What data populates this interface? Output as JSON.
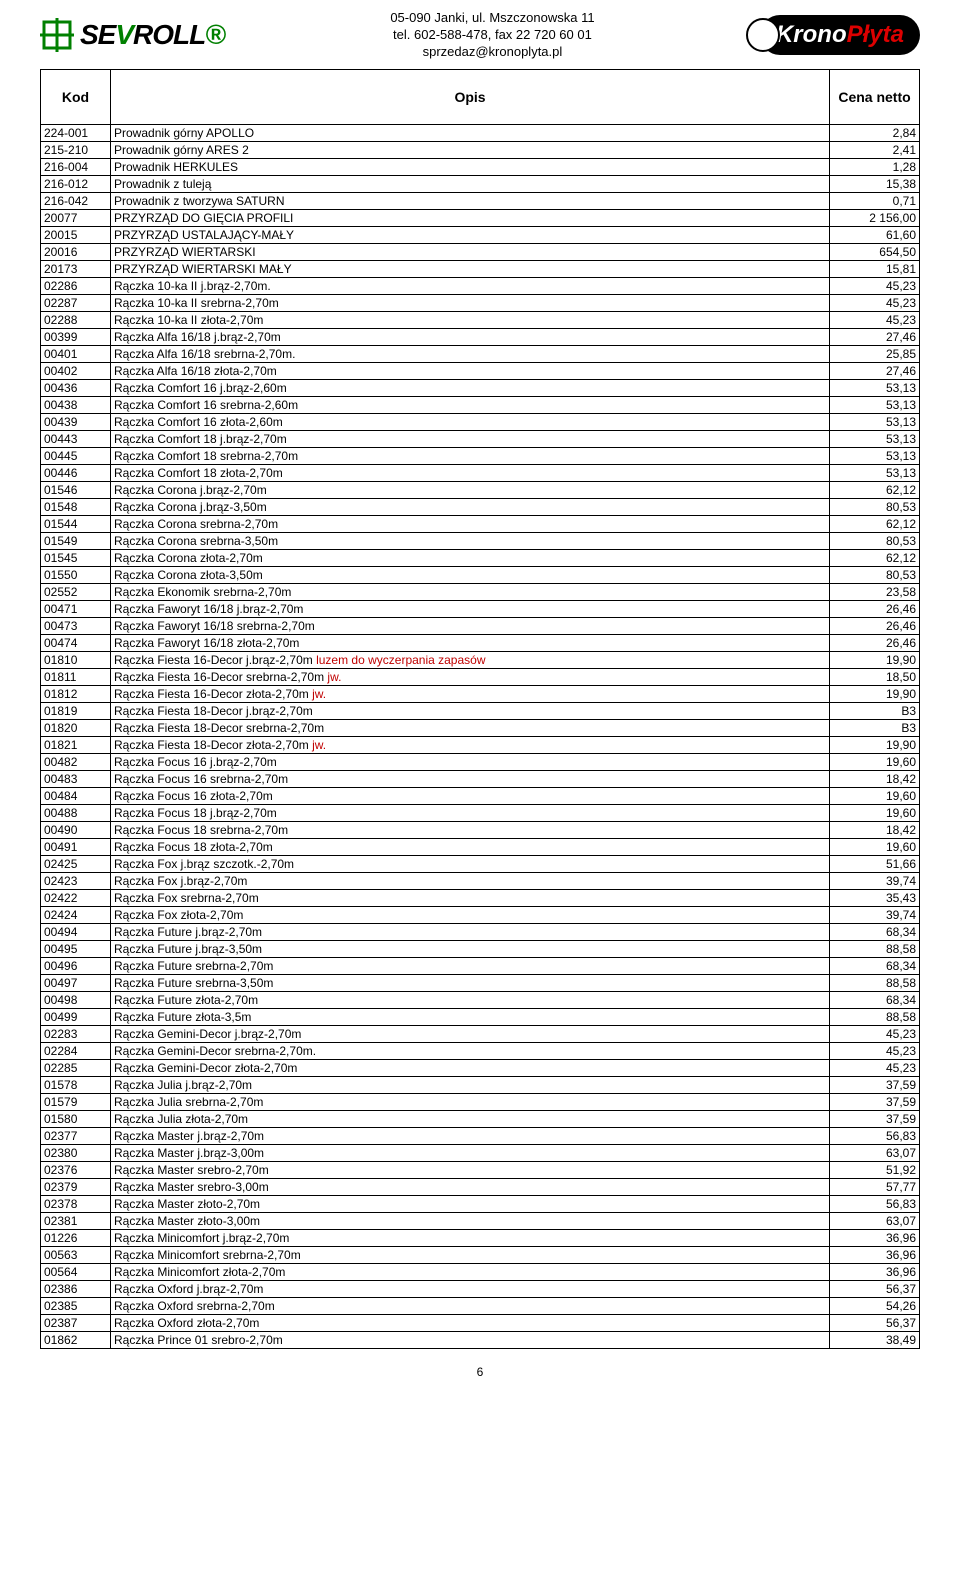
{
  "header": {
    "addr1": "05-090 Janki, ul. Mszczonowska 11",
    "addr2": "tel. 602-588-478, fax 22 720 60 01",
    "addr3": "sprzedaz@kronoplyta.pl",
    "logo_left": "SEVROLL",
    "logo_right_a": "Krono",
    "logo_right_b": "Płyta"
  },
  "columns": {
    "kod": "Kod",
    "opis": "Opis",
    "cena": "Cena netto"
  },
  "rows": [
    {
      "k": "224-001",
      "o": "Prowadnik górny APOLLO",
      "c": "2,84"
    },
    {
      "k": "215-210",
      "o": "Prowadnik górny ARES 2",
      "c": "2,41"
    },
    {
      "k": "216-004",
      "o": "Prowadnik HERKULES",
      "c": "1,28"
    },
    {
      "k": "216-012",
      "o": "Prowadnik z tuleją",
      "c": "15,38"
    },
    {
      "k": "216-042",
      "o": "Prowadnik z tworzywa SATURN",
      "c": "0,71"
    },
    {
      "k": "20077",
      "o": "PRZYRZĄD DO GIĘCIA PROFILI",
      "c": "2 156,00"
    },
    {
      "k": "20015",
      "o": "PRZYRZĄD USTALAJĄCY-MAŁY",
      "c": "61,60"
    },
    {
      "k": "20016",
      "o": "PRZYRZĄD WIERTARSKI",
      "c": "654,50"
    },
    {
      "k": "20173",
      "o": "PRZYRZĄD WIERTARSKI MAŁY",
      "c": "15,81"
    },
    {
      "k": "02286",
      "o": "Rączka 10-ka II j.brąz-2,70m.",
      "c": "45,23"
    },
    {
      "k": "02287",
      "o": "Rączka 10-ka II srebrna-2,70m",
      "c": "45,23"
    },
    {
      "k": "02288",
      "o": "Rączka 10-ka II złota-2,70m",
      "c": "45,23"
    },
    {
      "k": "00399",
      "o": "Rączka Alfa 16/18 j.brąz-2,70m",
      "c": "27,46"
    },
    {
      "k": "00401",
      "o": "Rączka Alfa 16/18 srebrna-2,70m.",
      "c": "25,85"
    },
    {
      "k": "00402",
      "o": "Rączka Alfa 16/18 złota-2,70m",
      "c": "27,46"
    },
    {
      "k": "00436",
      "o": "Rączka Comfort 16 j.brąz-2,60m",
      "c": "53,13"
    },
    {
      "k": "00438",
      "o": "Rączka Comfort 16 srebrna-2,60m",
      "c": "53,13"
    },
    {
      "k": "00439",
      "o": "Rączka Comfort 16 złota-2,60m",
      "c": "53,13"
    },
    {
      "k": "00443",
      "o": "Rączka Comfort 18 j.brąz-2,70m",
      "c": "53,13"
    },
    {
      "k": "00445",
      "o": "Rączka Comfort 18 srebrna-2,70m",
      "c": "53,13"
    },
    {
      "k": "00446",
      "o": "Rączka Comfort 18 złota-2,70m",
      "c": "53,13"
    },
    {
      "k": "01546",
      "o": "Rączka Corona j.brąz-2,70m",
      "c": "62,12"
    },
    {
      "k": "01548",
      "o": "Rączka Corona j.brąz-3,50m",
      "c": "80,53"
    },
    {
      "k": "01544",
      "o": "Rączka Corona srebrna-2,70m",
      "c": "62,12"
    },
    {
      "k": "01549",
      "o": "Rączka Corona srebrna-3,50m",
      "c": "80,53"
    },
    {
      "k": "01545",
      "o": "Rączka Corona złota-2,70m",
      "c": "62,12"
    },
    {
      "k": "01550",
      "o": "Rączka Corona złota-3,50m",
      "c": "80,53"
    },
    {
      "k": "02552",
      "o": "Rączka Ekonomik srebrna-2,70m",
      "c": "23,58"
    },
    {
      "k": "00471",
      "o": "Rączka Faworyt 16/18 j.brąz-2,70m",
      "c": "26,46"
    },
    {
      "k": "00473",
      "o": "Rączka Faworyt 16/18 srebrna-2,70m",
      "c": "26,46"
    },
    {
      "k": "00474",
      "o": "Rączka Faworyt 16/18 złota-2,70m",
      "c": "26,46"
    },
    {
      "k": "01810",
      "o": "Rączka Fiesta 16-Decor j.brąz-2,70m ",
      "hl": "luzem do wyczerpania zapasów",
      "c": "19,90"
    },
    {
      "k": "01811",
      "o": "Rączka Fiesta 16-Decor srebrna-2,70m ",
      "hl": "jw.",
      "c": "18,50"
    },
    {
      "k": "01812",
      "o": "Rączka Fiesta 16-Decor złota-2,70m ",
      "hl": "jw.",
      "c": "19,90"
    },
    {
      "k": "01819",
      "o": "Rączka Fiesta 18-Decor j.brąz-2,70m",
      "c": "B3"
    },
    {
      "k": "01820",
      "o": "Rączka Fiesta 18-Decor srebrna-2,70m",
      "c": "B3"
    },
    {
      "k": "01821",
      "o": "Rączka Fiesta 18-Decor złota-2,70m ",
      "hl": "jw.",
      "c": "19,90"
    },
    {
      "k": "00482",
      "o": "Rączka Focus 16 j.brąz-2,70m",
      "c": "19,60"
    },
    {
      "k": "00483",
      "o": "Rączka Focus 16 srebrna-2,70m",
      "c": "18,42"
    },
    {
      "k": "00484",
      "o": "Rączka Focus 16 złota-2,70m",
      "c": "19,60"
    },
    {
      "k": "00488",
      "o": "Rączka Focus 18 j.brąz-2,70m",
      "c": "19,60"
    },
    {
      "k": "00490",
      "o": "Rączka Focus 18 srebrna-2,70m",
      "c": "18,42"
    },
    {
      "k": "00491",
      "o": "Rączka Focus 18 złota-2,70m",
      "c": "19,60"
    },
    {
      "k": "02425",
      "o": "Rączka Fox j.brąz szczotk.-2,70m",
      "c": "51,66"
    },
    {
      "k": "02423",
      "o": "Rączka Fox j.brąz-2,70m",
      "c": "39,74"
    },
    {
      "k": "02422",
      "o": "Rączka Fox srebrna-2,70m",
      "c": "35,43"
    },
    {
      "k": "02424",
      "o": "Rączka Fox złota-2,70m",
      "c": "39,74"
    },
    {
      "k": "00494",
      "o": "Rączka Future j.brąz-2,70m",
      "c": "68,34"
    },
    {
      "k": "00495",
      "o": "Rączka Future j.brąz-3,50m",
      "c": "88,58"
    },
    {
      "k": "00496",
      "o": "Rączka Future srebrna-2,70m",
      "c": "68,34"
    },
    {
      "k": "00497",
      "o": "Rączka Future srebrna-3,50m",
      "c": "88,58"
    },
    {
      "k": "00498",
      "o": "Rączka Future złota-2,70m",
      "c": "68,34"
    },
    {
      "k": "00499",
      "o": "Rączka Future złota-3,5m",
      "c": "88,58"
    },
    {
      "k": "02283",
      "o": "Rączka Gemini-Decor j.brąz-2,70m",
      "c": "45,23"
    },
    {
      "k": "02284",
      "o": "Rączka Gemini-Decor srebrna-2,70m.",
      "c": "45,23"
    },
    {
      "k": "02285",
      "o": "Rączka Gemini-Decor złota-2,70m",
      "c": "45,23"
    },
    {
      "k": "01578",
      "o": "Rączka Julia j.brąz-2,70m",
      "c": "37,59"
    },
    {
      "k": "01579",
      "o": "Rączka Julia srebrna-2,70m",
      "c": "37,59"
    },
    {
      "k": "01580",
      "o": "Rączka Julia złota-2,70m",
      "c": "37,59"
    },
    {
      "k": "02377",
      "o": "Rączka Master j.brąz-2,70m",
      "c": "56,83"
    },
    {
      "k": "02380",
      "o": "Rączka Master j.brąz-3,00m",
      "c": "63,07"
    },
    {
      "k": "02376",
      "o": "Rączka Master srebro-2,70m",
      "c": "51,92"
    },
    {
      "k": "02379",
      "o": "Rączka Master srebro-3,00m",
      "c": "57,77"
    },
    {
      "k": "02378",
      "o": "Rączka Master złoto-2,70m",
      "c": "56,83"
    },
    {
      "k": "02381",
      "o": "Rączka Master złoto-3,00m",
      "c": "63,07"
    },
    {
      "k": "01226",
      "o": "Rączka Minicomfort j.brąz-2,70m",
      "c": "36,96"
    },
    {
      "k": "00563",
      "o": "Rączka Minicomfort srebrna-2,70m",
      "c": "36,96"
    },
    {
      "k": "00564",
      "o": "Rączka Minicomfort złota-2,70m",
      "c": "36,96"
    },
    {
      "k": "02386",
      "o": "Rączka Oxford j.brąz-2,70m",
      "c": "56,37"
    },
    {
      "k": "02385",
      "o": "Rączka Oxford srebrna-2,70m",
      "c": "54,26"
    },
    {
      "k": "02387",
      "o": "Rączka Oxford złota-2,70m",
      "c": "56,37"
    },
    {
      "k": "01862",
      "o": "Rączka Prince 01 srebro-2,70m",
      "c": "38,49"
    }
  ],
  "page_number": "6"
}
